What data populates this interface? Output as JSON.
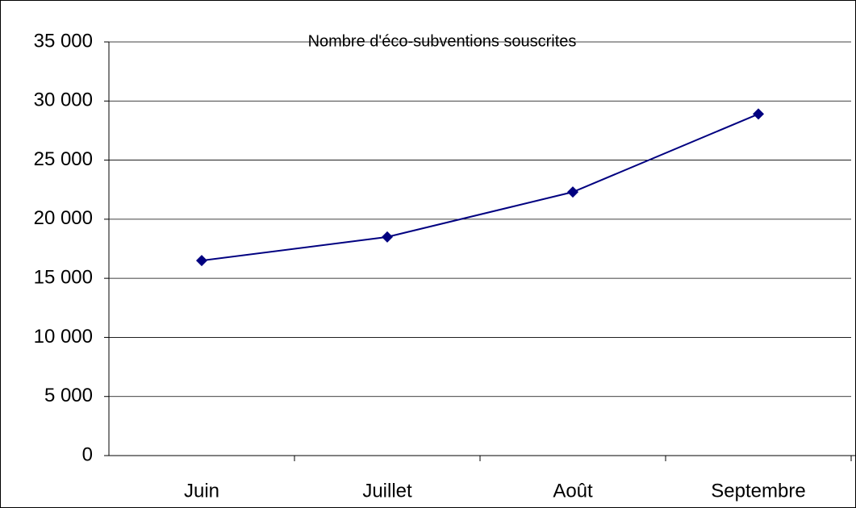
{
  "chart_data": {
    "type": "line",
    "title": "Nombre d'éco-subventions souscrites",
    "categories": [
      "Juin",
      "Juillet",
      "Août",
      "Septembre"
    ],
    "values": [
      16500,
      18500,
      22300,
      28900
    ],
    "color": "#000080",
    "ylim": [
      0,
      35000
    ],
    "yticks": [
      0,
      {
        "value": 5000,
        "label": "5 000"
      },
      {
        "value": 10000,
        "label": "10 000"
      },
      {
        "value": 15000,
        "label": "15 000"
      },
      {
        "value": 20000,
        "label": "20 000"
      },
      {
        "value": 25000,
        "label": "25 000"
      },
      {
        "value": 30000,
        "label": "30 000"
      },
      {
        "value": 35000,
        "label": "35 000"
      }
    ],
    "grid": true
  }
}
